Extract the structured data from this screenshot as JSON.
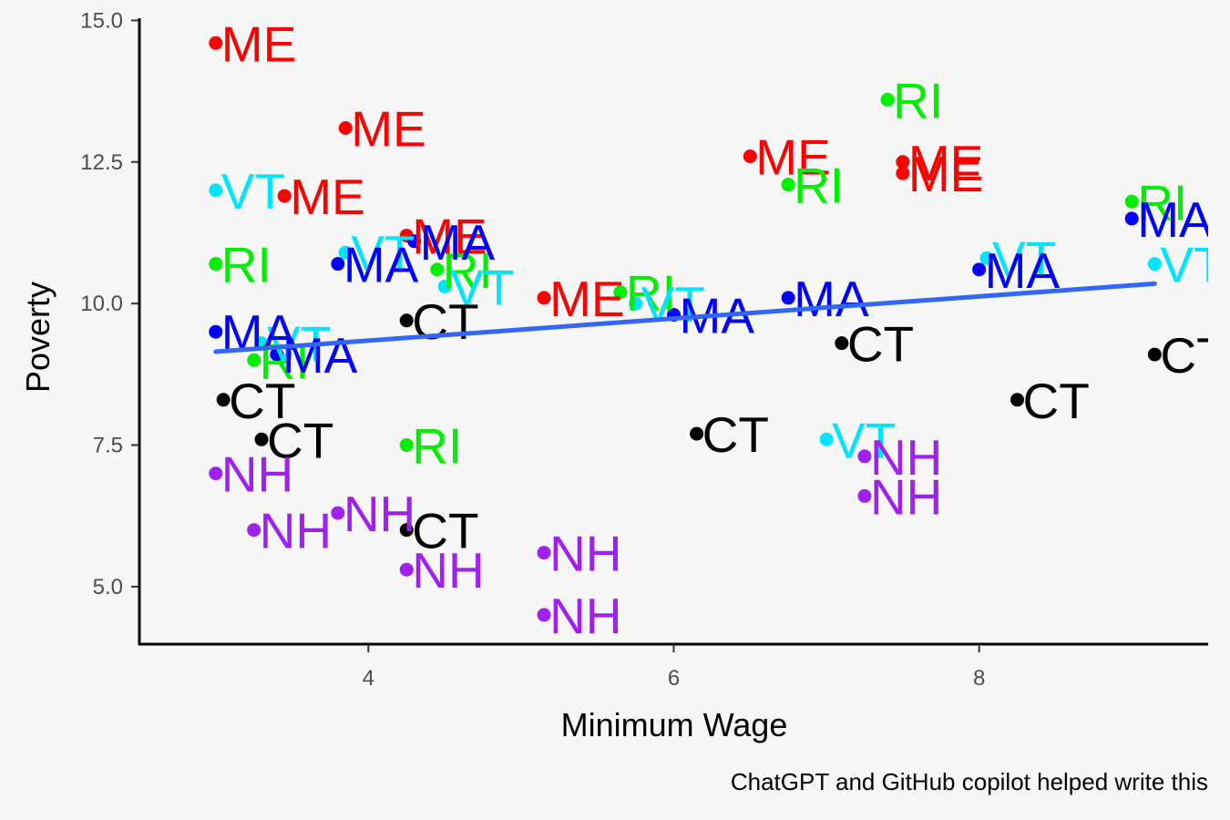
{
  "chart_data": {
    "type": "scatter",
    "xlabel": "Minimum Wage",
    "ylabel": "Poverty",
    "caption": "ChatGPT and GitHub copilot helped write this",
    "xlim": [
      2.5,
      9.5
    ],
    "ylim": [
      4.0,
      15.2
    ],
    "xticks": [
      4,
      6,
      8
    ],
    "yticks": [
      5.0,
      7.5,
      10.0,
      12.5,
      15.0
    ],
    "xtick_labels": [
      "4",
      "6",
      "8"
    ],
    "ytick_labels": [
      "5.0",
      "7.5",
      "10.0",
      "12.5",
      "15.0"
    ],
    "grid": false,
    "colors": {
      "ME": "#ff0000",
      "RI": "#00ee00",
      "VT": "#00e5ff",
      "MA": "#0000ff",
      "CT": "#000000",
      "NH": "#a020f0",
      "trend": "#3366ff"
    },
    "points": [
      {
        "x": 3.0,
        "y": 14.6,
        "label": "ME"
      },
      {
        "x": 3.85,
        "y": 13.1,
        "label": "ME"
      },
      {
        "x": 3.45,
        "y": 11.9,
        "label": "ME"
      },
      {
        "x": 4.25,
        "y": 11.2,
        "label": "ME"
      },
      {
        "x": 5.15,
        "y": 10.1,
        "label": "ME"
      },
      {
        "x": 6.5,
        "y": 12.6,
        "label": "ME"
      },
      {
        "x": 7.5,
        "y": 12.5,
        "label": "ME"
      },
      {
        "x": 7.5,
        "y": 12.3,
        "label": "ME"
      },
      {
        "x": 7.4,
        "y": 13.6,
        "label": "RI"
      },
      {
        "x": 6.75,
        "y": 12.1,
        "label": "RI"
      },
      {
        "x": 9.0,
        "y": 11.8,
        "label": "RI"
      },
      {
        "x": 3.0,
        "y": 10.7,
        "label": "RI"
      },
      {
        "x": 4.45,
        "y": 10.6,
        "label": "RI"
      },
      {
        "x": 5.65,
        "y": 10.2,
        "label": "RI"
      },
      {
        "x": 3.25,
        "y": 9.0,
        "label": "RI"
      },
      {
        "x": 4.25,
        "y": 7.5,
        "label": "RI"
      },
      {
        "x": 3.0,
        "y": 12.0,
        "label": "VT"
      },
      {
        "x": 3.85,
        "y": 10.9,
        "label": "VT"
      },
      {
        "x": 4.5,
        "y": 10.3,
        "label": "VT"
      },
      {
        "x": 5.75,
        "y": 10.0,
        "label": "VT"
      },
      {
        "x": 3.3,
        "y": 9.3,
        "label": "VT"
      },
      {
        "x": 8.05,
        "y": 10.8,
        "label": "VT"
      },
      {
        "x": 9.15,
        "y": 10.7,
        "label": "VT"
      },
      {
        "x": 7.0,
        "y": 7.6,
        "label": "VT"
      },
      {
        "x": 3.0,
        "y": 9.5,
        "label": "MA"
      },
      {
        "x": 3.8,
        "y": 10.7,
        "label": "MA"
      },
      {
        "x": 4.3,
        "y": 11.1,
        "label": "MA"
      },
      {
        "x": 3.4,
        "y": 9.1,
        "label": "MA"
      },
      {
        "x": 6.0,
        "y": 9.8,
        "label": "MA"
      },
      {
        "x": 6.75,
        "y": 10.1,
        "label": "MA"
      },
      {
        "x": 8.0,
        "y": 10.6,
        "label": "MA"
      },
      {
        "x": 9.0,
        "y": 11.5,
        "label": "MA"
      },
      {
        "x": 3.05,
        "y": 8.3,
        "label": "CT"
      },
      {
        "x": 3.3,
        "y": 7.6,
        "label": "CT"
      },
      {
        "x": 4.25,
        "y": 9.7,
        "label": "CT"
      },
      {
        "x": 4.25,
        "y": 6.0,
        "label": "CT"
      },
      {
        "x": 6.15,
        "y": 7.7,
        "label": "CT"
      },
      {
        "x": 7.1,
        "y": 9.3,
        "label": "CT"
      },
      {
        "x": 8.25,
        "y": 8.3,
        "label": "CT"
      },
      {
        "x": 9.15,
        "y": 9.1,
        "label": "CT"
      },
      {
        "x": 3.0,
        "y": 7.0,
        "label": "NH"
      },
      {
        "x": 3.25,
        "y": 6.0,
        "label": "NH"
      },
      {
        "x": 3.8,
        "y": 6.3,
        "label": "NH"
      },
      {
        "x": 4.25,
        "y": 5.3,
        "label": "NH"
      },
      {
        "x": 5.15,
        "y": 5.6,
        "label": "NH"
      },
      {
        "x": 5.15,
        "y": 4.5,
        "label": "NH"
      },
      {
        "x": 7.25,
        "y": 7.3,
        "label": "NH"
      },
      {
        "x": 7.25,
        "y": 6.6,
        "label": "NH"
      }
    ],
    "trend_line": {
      "x": [
        3.0,
        9.15
      ],
      "y": [
        9.15,
        10.35
      ]
    }
  }
}
